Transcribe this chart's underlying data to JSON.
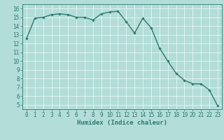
{
  "x": [
    0,
    1,
    2,
    3,
    4,
    5,
    6,
    7,
    8,
    9,
    10,
    11,
    12,
    13,
    14,
    15,
    16,
    17,
    18,
    19,
    20,
    21,
    22,
    23
  ],
  "y": [
    12.6,
    14.9,
    15.0,
    15.3,
    15.4,
    15.3,
    15.0,
    15.0,
    14.7,
    15.4,
    15.6,
    15.7,
    14.5,
    13.2,
    14.9,
    13.8,
    11.5,
    10.0,
    8.6,
    7.8,
    7.4,
    7.4,
    6.7,
    4.9
  ],
  "line_color": "#2d7a6e",
  "marker": "D",
  "marker_size": 1.8,
  "bg_color": "#b2ddd8",
  "grid_color": "#e8f5f3",
  "tick_color": "#2d7a6e",
  "label_color": "#2d7a6e",
  "xlabel": "Humidex (Indice chaleur)",
  "xlim": [
    -0.5,
    23.5
  ],
  "ylim": [
    4.5,
    16.5
  ],
  "yticks": [
    5,
    6,
    7,
    8,
    9,
    10,
    11,
    12,
    13,
    14,
    15,
    16
  ],
  "xticks": [
    0,
    1,
    2,
    3,
    4,
    5,
    6,
    7,
    8,
    9,
    10,
    11,
    12,
    13,
    14,
    15,
    16,
    17,
    18,
    19,
    20,
    21,
    22,
    23
  ],
  "font_size": 5.5,
  "xlabel_font_size": 6.5,
  "line_width": 1.0
}
